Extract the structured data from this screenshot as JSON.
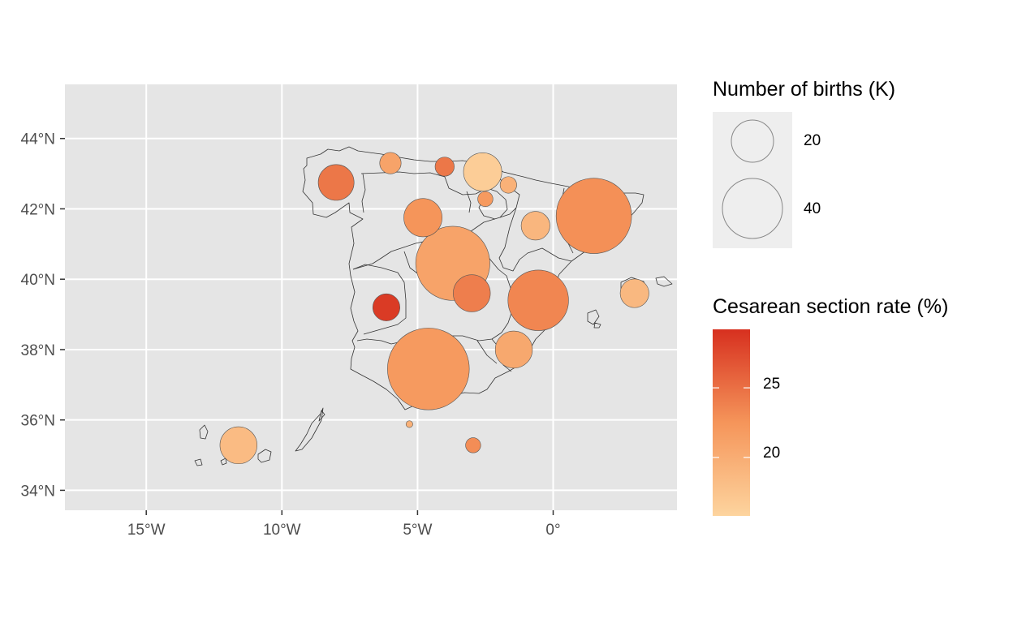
{
  "map": {
    "lat_labels": [
      "34°N",
      "36°N",
      "38°N",
      "40°N",
      "42°N",
      "44°N"
    ],
    "lat_values": [
      34,
      36,
      38,
      40,
      42,
      44
    ],
    "lon_labels": [
      "15°W",
      "10°W",
      "5°W",
      "0°"
    ],
    "lon_values": [
      -15,
      -10,
      -5,
      0
    ],
    "lon_range": [
      -18,
      4.6
    ],
    "lat_range": [
      33.4,
      45.6
    ],
    "panel_background": "#e5e5e5",
    "grid_color": "#ffffff"
  },
  "legend_size": {
    "title": "Number of births (K)",
    "labels": [
      "20",
      "40"
    ],
    "values": [
      20,
      40
    ]
  },
  "legend_color": {
    "title": "Cesarean section rate (%)",
    "labels": [
      "25",
      "20"
    ],
    "values": [
      25,
      20
    ],
    "range": [
      15.8,
      29.2
    ],
    "low_color": "#fdd49e",
    "mid_color": "#f5955a",
    "high_color": "#d7301f"
  },
  "chart_data": {
    "type": "scatter",
    "title": "",
    "xlabel": "",
    "ylabel": "",
    "size_variable": "Number of births (K)",
    "color_variable": "Cesarean section rate (%)",
    "points": [
      {
        "lon": -8.0,
        "lat": 42.75,
        "births": 14,
        "rate": 24.5
      },
      {
        "lon": -6.0,
        "lat": 43.3,
        "births": 5,
        "rate": 21.0
      },
      {
        "lon": -4.0,
        "lat": 43.2,
        "births": 4,
        "rate": 24.5
      },
      {
        "lon": -2.6,
        "lat": 43.05,
        "births": 16,
        "rate": 16.5
      },
      {
        "lon": -1.65,
        "lat": 42.68,
        "births": 3,
        "rate": 19.5
      },
      {
        "lon": -2.5,
        "lat": 42.28,
        "births": 2.5,
        "rate": 22.0
      },
      {
        "lon": -4.8,
        "lat": 41.75,
        "births": 16,
        "rate": 22.5
      },
      {
        "lon": -0.65,
        "lat": 41.52,
        "births": 9,
        "rate": 19.0
      },
      {
        "lon": 1.5,
        "lat": 41.8,
        "births": 62,
        "rate": 22.8
      },
      {
        "lon": -3.7,
        "lat": 40.45,
        "births": 60,
        "rate": 21.0
      },
      {
        "lon": -3.0,
        "lat": 39.6,
        "births": 15,
        "rate": 24.0
      },
      {
        "lon": -6.15,
        "lat": 39.2,
        "births": 8,
        "rate": 28.5
      },
      {
        "lon": -0.55,
        "lat": 39.4,
        "births": 40,
        "rate": 23.5
      },
      {
        "lon": 3.0,
        "lat": 39.6,
        "births": 9,
        "rate": 18.8
      },
      {
        "lon": -1.45,
        "lat": 38.0,
        "births": 15,
        "rate": 20.5
      },
      {
        "lon": -4.6,
        "lat": 37.45,
        "births": 73,
        "rate": 22.0
      },
      {
        "lon": -11.6,
        "lat": 35.28,
        "births": 15,
        "rate": 18.5
      },
      {
        "lon": -5.3,
        "lat": 35.88,
        "births": 0.5,
        "rate": 19.5
      },
      {
        "lon": -2.95,
        "lat": 35.28,
        "births": 2.5,
        "rate": 23.0
      }
    ]
  }
}
